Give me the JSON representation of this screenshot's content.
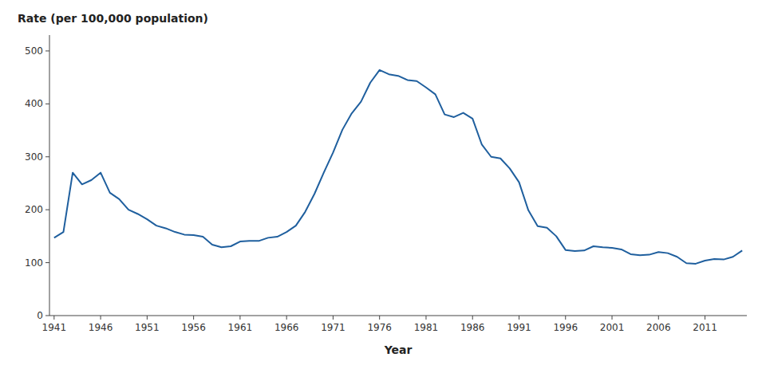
{
  "chart_data": {
    "type": "line",
    "ylabel": "Rate (per 100,000 population)",
    "xlabel": "Year",
    "x": [
      1941,
      1942,
      1943,
      1944,
      1945,
      1946,
      1947,
      1948,
      1949,
      1950,
      1951,
      1952,
      1953,
      1954,
      1955,
      1956,
      1957,
      1958,
      1959,
      1960,
      1961,
      1962,
      1963,
      1964,
      1965,
      1966,
      1967,
      1968,
      1969,
      1970,
      1971,
      1972,
      1973,
      1974,
      1975,
      1976,
      1977,
      1978,
      1979,
      1980,
      1981,
      1982,
      1983,
      1984,
      1985,
      1986,
      1987,
      1988,
      1989,
      1990,
      1991,
      1992,
      1993,
      1994,
      1995,
      1996,
      1997,
      1998,
      1999,
      2000,
      2001,
      2002,
      2003,
      2004,
      2005,
      2006,
      2007,
      2008,
      2009,
      2010,
      2011,
      2012,
      2013,
      2014,
      2015
    ],
    "values": [
      147.0,
      158.0,
      270.0,
      248.0,
      256.0,
      270.0,
      232.0,
      220.0,
      200.0,
      192.0,
      182.0,
      170.0,
      165.0,
      158.0,
      153.0,
      152.0,
      149.0,
      134.0,
      129.0,
      131.0,
      140.0,
      141.0,
      141.0,
      147.0,
      149.0,
      158.0,
      170.0,
      196.0,
      230.0,
      270.0,
      308.0,
      351.0,
      382.0,
      404.0,
      440.0,
      464.0,
      456.0,
      453.0,
      445.0,
      443.0,
      431.0,
      418.0,
      380.0,
      375.0,
      383.0,
      372.0,
      323.0,
      300.0,
      297.0,
      278.0,
      252.0,
      199.0,
      169.0,
      166.0,
      150.0,
      124.0,
      122.0,
      123.0,
      131.0,
      129.0,
      128.0,
      125.0,
      116.0,
      114.0,
      115.0,
      120.0,
      118.0,
      111.0,
      99.0,
      98.0,
      104.0,
      107.0,
      106.0,
      111.0,
      123.0
    ],
    "color": "#1f5f9e",
    "xlim": [
      1940.5,
      2015.5
    ],
    "ylim": [
      0,
      530
    ],
    "xticks": [
      1941,
      1946,
      1951,
      1956,
      1961,
      1966,
      1971,
      1976,
      1981,
      1986,
      1991,
      1996,
      2001,
      2006,
      2011
    ],
    "yticks": [
      0,
      100,
      200,
      300,
      400,
      500
    ],
    "grid": false
  }
}
